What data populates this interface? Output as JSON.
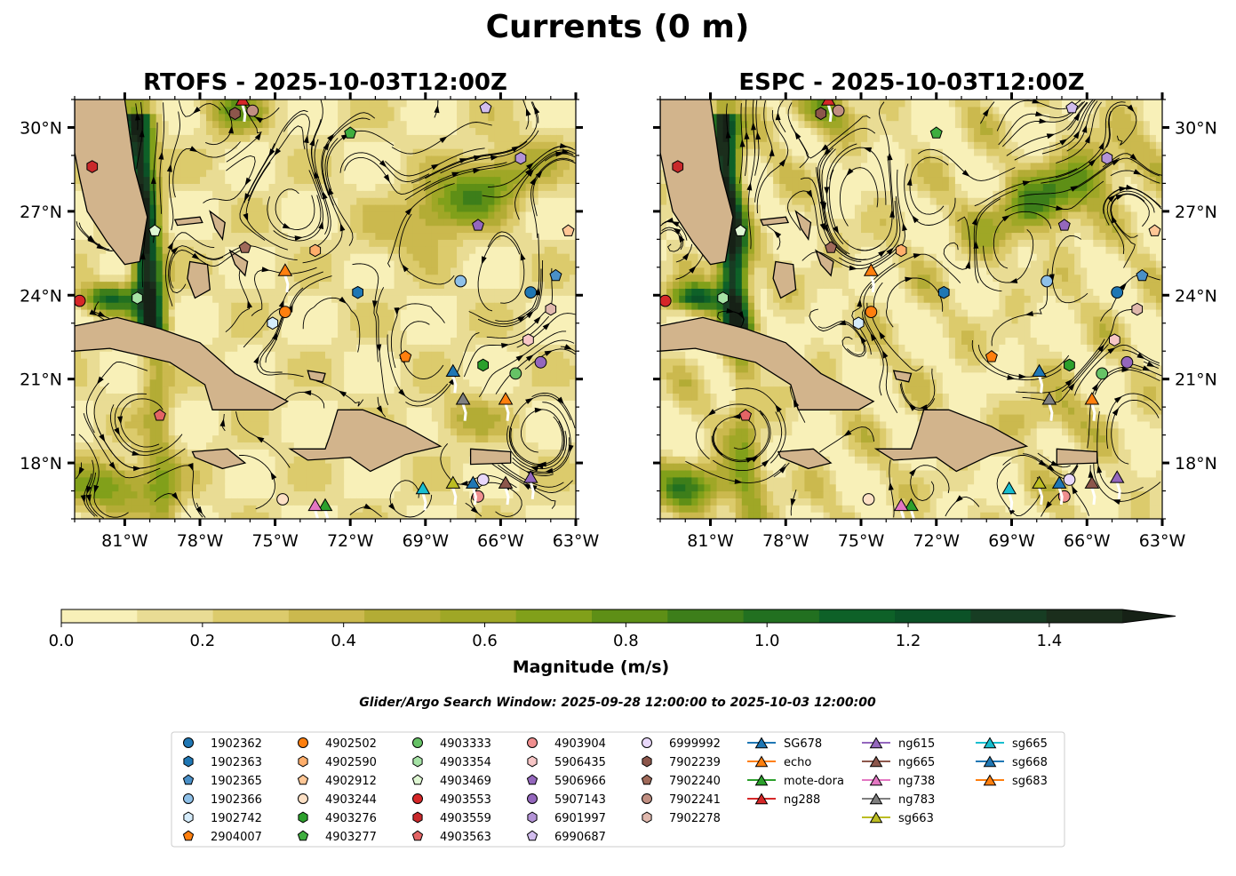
{
  "figure": {
    "suptitle": "Currents (0 m)",
    "search_window": "Glider/Argo Search Window: 2025-09-28 12:00:00 to 2025-10-03 12:00:00"
  },
  "chart_data": [
    {
      "type": "map",
      "title": "RTOFS - 2025-10-03T12:00Z",
      "xlim": [
        -83,
        -63
      ],
      "ylim": [
        16,
        31
      ],
      "xticks": [
        -81,
        -78,
        -75,
        -72,
        -69,
        -66,
        -63
      ],
      "xtick_labels": [
        "81°W",
        "78°W",
        "75°W",
        "72°W",
        "69°W",
        "66°W",
        "63°W"
      ],
      "yticks": [
        18,
        21,
        24,
        27,
        30
      ],
      "ytick_labels": [
        "18°N",
        "21°N",
        "24°N",
        "27°N",
        "30°N"
      ],
      "ytick_side": "left",
      "variable": "current magnitude (m/s) with streamlines"
    },
    {
      "type": "map",
      "title": "ESPC - 2025-10-03T12:00Z",
      "xlim": [
        -83,
        -63
      ],
      "ylim": [
        16,
        31
      ],
      "xticks": [
        -81,
        -78,
        -75,
        -72,
        -69,
        -66,
        -63
      ],
      "xtick_labels": [
        "81°W",
        "78°W",
        "75°W",
        "72°W",
        "69°W",
        "66°W",
        "63°W"
      ],
      "yticks": [
        18,
        21,
        24,
        27,
        30
      ],
      "ytick_labels": [
        "18°N",
        "21°N",
        "24°N",
        "27°N",
        "30°N"
      ],
      "ytick_side": "right",
      "variable": "current magnitude (m/s) with streamlines"
    }
  ],
  "colorbar": {
    "label": "Magnitude (m/s)",
    "min": 0.0,
    "max": 1.5,
    "extend": "max",
    "ticks": [
      0.0,
      0.2,
      0.4,
      0.6,
      0.8,
      1.0,
      1.2,
      1.4
    ],
    "tick_labels": [
      "0.0",
      "0.2",
      "0.4",
      "0.6",
      "0.8",
      "1.0",
      "1.2",
      "1.4"
    ],
    "levels": [
      "#f8f0b8",
      "#e9dc94",
      "#dccb6c",
      "#cbb94e",
      "#b3ac35",
      "#9fa726",
      "#81a01a",
      "#5e8f16",
      "#3d7e1a",
      "#227020",
      "#0e6128",
      "#0b5227",
      "#173d23",
      "#1b2e1c",
      "#162116"
    ]
  },
  "land_color": "#d2b48c",
  "platforms": [
    {
      "name": "1902362",
      "marker": "circle",
      "color": "#1f77b4",
      "lon": -64.8,
      "lat": 24.1
    },
    {
      "name": "1902363",
      "marker": "hexagon",
      "color": "#1f77b4",
      "lon": -71.7,
      "lat": 24.1
    },
    {
      "name": "1902365",
      "marker": "pentagon",
      "color": "#4a90c8",
      "lon": -63.8,
      "lat": 24.7
    },
    {
      "name": "1902366",
      "marker": "circle",
      "color": "#8ec0e8",
      "lon": -67.6,
      "lat": 24.5
    },
    {
      "name": "1902742",
      "marker": "hexagon",
      "color": "#d5ecfb",
      "lon": -75.1,
      "lat": 23.0
    },
    {
      "name": "2904007",
      "marker": "pentagon",
      "color": "#ff7f0e",
      "lon": -69.8,
      "lat": 21.8
    },
    {
      "name": "4902502",
      "marker": "circle",
      "color": "#ff7f0e",
      "lon": -74.6,
      "lat": 23.4
    },
    {
      "name": "4902590",
      "marker": "hexagon",
      "color": "#ffae6b",
      "lon": -73.4,
      "lat": 25.6
    },
    {
      "name": "4902912",
      "marker": "pentagon",
      "color": "#ffc796",
      "lon": -63.3,
      "lat": 26.3
    },
    {
      "name": "4903244",
      "marker": "circle",
      "color": "#fde0c5",
      "lon": -74.7,
      "lat": 16.7
    },
    {
      "name": "4903276",
      "marker": "hexagon",
      "color": "#2ca02c",
      "lon": -66.7,
      "lat": 21.5
    },
    {
      "name": "4903277",
      "marker": "pentagon",
      "color": "#3fae3f",
      "lon": -72.0,
      "lat": 29.8
    },
    {
      "name": "4903333",
      "marker": "circle",
      "color": "#66c266",
      "lon": -65.4,
      "lat": 21.2
    },
    {
      "name": "4903354",
      "marker": "hexagon",
      "color": "#a6e3a6",
      "lon": -80.5,
      "lat": 23.9
    },
    {
      "name": "4903469",
      "marker": "pentagon",
      "color": "#dff7d3",
      "lon": -79.8,
      "lat": 26.3
    },
    {
      "name": "4903553",
      "marker": "circle",
      "color": "#d62728",
      "lon": -82.8,
      "lat": 23.8
    },
    {
      "name": "4903559",
      "marker": "hexagon",
      "color": "#c9292b",
      "lon": -82.3,
      "lat": 28.6
    },
    {
      "name": "4903563",
      "marker": "pentagon",
      "color": "#e36465",
      "lon": -79.6,
      "lat": 19.7
    },
    {
      "name": "4903904",
      "marker": "circle",
      "color": "#f08f8f",
      "lon": -66.9,
      "lat": 16.8
    },
    {
      "name": "5906435",
      "marker": "hexagon",
      "color": "#f7c6c6",
      "lon": -64.9,
      "lat": 22.4
    },
    {
      "name": "5906966",
      "marker": "pentagon",
      "color": "#9467bd",
      "lon": -66.9,
      "lat": 26.5
    },
    {
      "name": "5907143",
      "marker": "circle",
      "color": "#9467bd",
      "lon": -64.4,
      "lat": 21.6
    },
    {
      "name": "6901997",
      "marker": "hexagon",
      "color": "#b393d6",
      "lon": -65.2,
      "lat": 28.9
    },
    {
      "name": "6990687",
      "marker": "pentagon",
      "color": "#d2bdee",
      "lon": -66.6,
      "lat": 30.7
    },
    {
      "name": "6999992",
      "marker": "circle",
      "color": "#e9d8fb",
      "lon": -66.7,
      "lat": 17.4
    },
    {
      "name": "7902239",
      "marker": "hexagon",
      "color": "#8c564b",
      "lon": -76.6,
      "lat": 30.5
    },
    {
      "name": "7902240",
      "marker": "pentagon",
      "color": "#a06a5a",
      "lon": -76.2,
      "lat": 25.7
    },
    {
      "name": "7902241",
      "marker": "circle",
      "color": "#c18f82",
      "lon": -75.9,
      "lat": 30.6
    },
    {
      "name": "7902278",
      "marker": "hexagon",
      "color": "#e0b8ad",
      "lon": -64.0,
      "lat": 23.5
    },
    {
      "name": "SG678",
      "marker": "triangle",
      "color": "#1f77b4",
      "lon": -67.9,
      "lat": 21.3,
      "line": true
    },
    {
      "name": "echo",
      "marker": "triangle",
      "color": "#ff7f0e",
      "lon": -74.6,
      "lat": 24.9,
      "line": true
    },
    {
      "name": "mote-dora",
      "marker": "triangle",
      "color": "#2ca02c",
      "lon": -73.0,
      "lat": 16.5,
      "line": true
    },
    {
      "name": "ng288",
      "marker": "triangle",
      "color": "#d62728",
      "lon": -76.3,
      "lat": 31.0,
      "line": true
    },
    {
      "name": "ng615",
      "marker": "triangle",
      "color": "#9467bd",
      "lon": -64.8,
      "lat": 17.5,
      "line": true
    },
    {
      "name": "ng665",
      "marker": "triangle",
      "color": "#8c564b",
      "lon": -65.8,
      "lat": 17.3,
      "line": true
    },
    {
      "name": "ng738",
      "marker": "triangle",
      "color": "#e377c2",
      "lon": -73.4,
      "lat": 16.5,
      "line": true
    },
    {
      "name": "ng783",
      "marker": "triangle",
      "color": "#7f7f7f",
      "lon": -67.5,
      "lat": 20.3,
      "line": true
    },
    {
      "name": "sg663",
      "marker": "triangle",
      "color": "#bcbd22",
      "lon": -67.9,
      "lat": 17.3,
      "line": true
    },
    {
      "name": "sg665",
      "marker": "triangle",
      "color": "#17becf",
      "lon": -69.1,
      "lat": 17.1,
      "line": true
    },
    {
      "name": "sg668",
      "marker": "triangle",
      "color": "#1f77b4",
      "lon": -67.1,
      "lat": 17.3,
      "line": true
    },
    {
      "name": "sg683",
      "marker": "triangle",
      "color": "#ff7f0e",
      "lon": -65.8,
      "lat": 20.3,
      "line": true
    }
  ]
}
